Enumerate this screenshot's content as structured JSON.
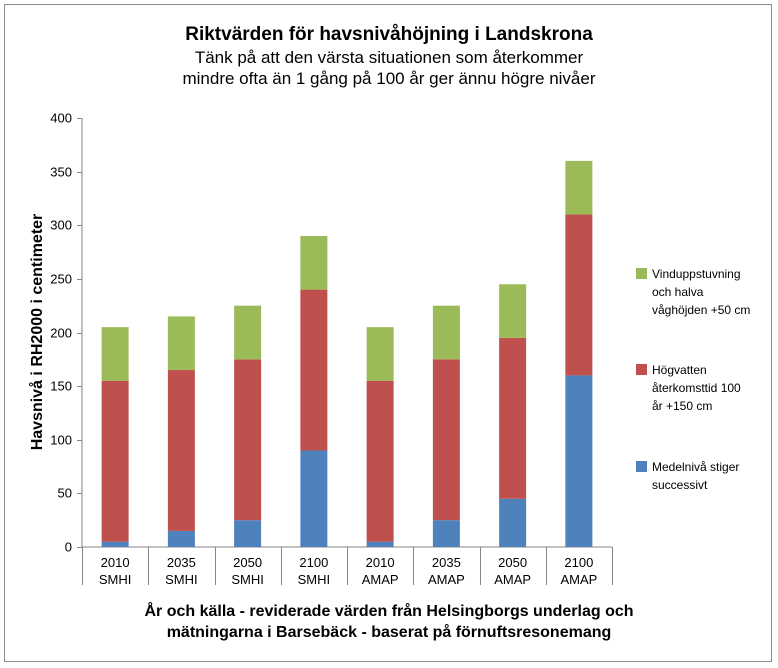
{
  "chart_data": {
    "type": "bar",
    "stacked": true,
    "title": "Riktvärden för havsnivåhöjning i Landskrona",
    "subtitle_lines": [
      "Tänk på att den värsta situationen som återkommer",
      "mindre ofta än 1 gång på 100 år ger ännu högre nivåer"
    ],
    "ylabel": "Havsnivå i RH2000 i centimeter",
    "xlabel_lines": [
      "År och källa - reviderade värden från Helsingborgs underlag och",
      "mätningarna i Barsebäck - baserat på förnuftsresonemang"
    ],
    "categories": [
      [
        "2010",
        "SMHI"
      ],
      [
        "2035",
        "SMHI"
      ],
      [
        "2050",
        "SMHI"
      ],
      [
        "2100",
        "SMHI"
      ],
      [
        "2010",
        "AMAP"
      ],
      [
        "2035",
        "AMAP"
      ],
      [
        "2050",
        "AMAP"
      ],
      [
        "2100",
        "AMAP"
      ]
    ],
    "series": [
      {
        "name": "Medelnivå stiger successivt",
        "color": "#4f81bd",
        "values": [
          5,
          15,
          25,
          90,
          5,
          25,
          45,
          160
        ]
      },
      {
        "name": "Högvatten återkomsttid 100 år +150 cm",
        "color": "#c0504d",
        "values": [
          150,
          150,
          150,
          150,
          150,
          150,
          150,
          150
        ]
      },
      {
        "name": "Vinduppstuvning och halva våghöjden +50 cm",
        "color": "#9bbb59",
        "values": [
          50,
          50,
          50,
          50,
          50,
          50,
          50,
          50
        ]
      }
    ],
    "ylim": [
      0,
      400
    ],
    "yticks": [
      0,
      50,
      100,
      150,
      200,
      250,
      300,
      350,
      400
    ],
    "grid": false,
    "legend_position": "right"
  },
  "legend": [
    {
      "lines": [
        "Vinduppstuvning",
        "och halva",
        "våghöjden +50 cm"
      ],
      "color": "#9bbb59"
    },
    {
      "lines": [
        "Högvatten",
        "återkomsttid 100",
        "år +150 cm"
      ],
      "color": "#c0504d"
    },
    {
      "lines": [
        "Medelnivå stiger",
        "successivt"
      ],
      "color": "#4f81bd"
    }
  ]
}
